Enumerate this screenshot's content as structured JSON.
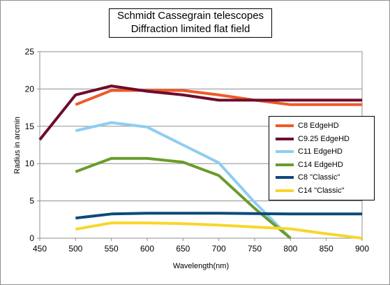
{
  "chart_data": {
    "type": "line",
    "title": [
      "Schmidt Cassegrain telescopes",
      "Diffraction limited flat field"
    ],
    "xlabel": "Wavelength(nm)",
    "ylabel": "Radius in arcmin",
    "xlim": [
      450,
      900
    ],
    "ylim": [
      0,
      25
    ],
    "x_ticks": [
      450,
      500,
      550,
      600,
      650,
      700,
      750,
      800,
      850,
      900
    ],
    "y_ticks": [
      0,
      5,
      10,
      15,
      20,
      25
    ],
    "grid": "horizontal",
    "legend_position": "right",
    "series": [
      {
        "name": "C8 EdgeHD",
        "color": "#ef5a28",
        "x": [
          500,
          550,
          600,
          650,
          700,
          750,
          800,
          900
        ],
        "y": [
          17.9,
          19.8,
          19.8,
          19.8,
          19.2,
          18.5,
          17.9,
          17.9
        ]
      },
      {
        "name": "C9.25 EdgeHD",
        "color": "#6e0b2e",
        "x": [
          450,
          500,
          550,
          600,
          650,
          700,
          750,
          800,
          900
        ],
        "y": [
          13.2,
          19.2,
          20.4,
          19.7,
          19.2,
          18.5,
          18.5,
          18.5,
          18.5
        ]
      },
      {
        "name": "C11  EdgeHD",
        "color": "#8fcdf1",
        "x": [
          500,
          550,
          600,
          650,
          700,
          750,
          800
        ],
        "y": [
          14.4,
          15.5,
          14.9,
          12.5,
          10.1,
          4.8,
          0
        ]
      },
      {
        "name": "C14 EdgeHD",
        "color": "#6a9c2a",
        "x": [
          500,
          550,
          600,
          650,
          700,
          750,
          800
        ],
        "y": [
          8.9,
          10.7,
          10.7,
          10.2,
          8.4,
          4.0,
          0
        ]
      },
      {
        "name": "C8 \"Classic\"",
        "color": "#0c4a7a",
        "x": [
          500,
          550,
          600,
          650,
          700,
          750,
          800,
          850,
          900
        ],
        "y": [
          2.7,
          3.25,
          3.35,
          3.35,
          3.35,
          3.3,
          3.25,
          3.25,
          3.25
        ]
      },
      {
        "name": "C14 \"Classic\"",
        "color": "#f8d62b",
        "x": [
          500,
          550,
          600,
          650,
          700,
          750,
          800,
          850,
          900
        ],
        "y": [
          1.2,
          2.05,
          2.05,
          1.95,
          1.75,
          1.5,
          1.25,
          0.6,
          0
        ]
      }
    ]
  }
}
